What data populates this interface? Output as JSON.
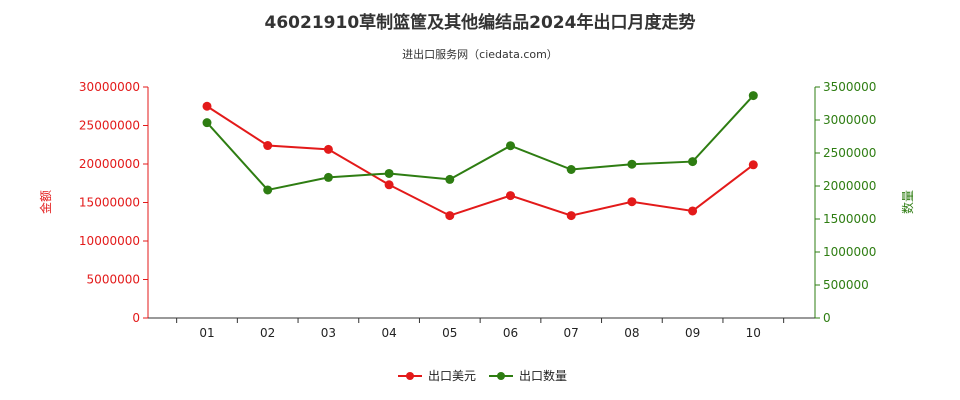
{
  "title": "46021910草制篮筐及其他编结品2024年出口月度走势",
  "subtitle": "进出口服务网（ciedata.com）",
  "chart_data": {
    "type": "line",
    "categories": [
      "01",
      "02",
      "03",
      "04",
      "05",
      "06",
      "07",
      "08",
      "09",
      "10"
    ],
    "y_left": {
      "label": "金额",
      "ylim": [
        0,
        30000000
      ],
      "ticks": [
        "0",
        "5000000",
        "10000000",
        "15000000",
        "20000000",
        "25000000",
        "30000000"
      ],
      "color": "#e31a1a"
    },
    "y_right": {
      "label": "数量",
      "ylim": [
        0,
        3500000
      ],
      "ticks": [
        "0",
        "500000",
        "1000000",
        "1500000",
        "2000000",
        "2500000",
        "3000000",
        "3500000"
      ],
      "color": "#2e7d12"
    },
    "series": [
      {
        "name": "出口美元",
        "axis": "left",
        "color": "#e31a1a",
        "values": [
          27500000,
          22400000,
          21900000,
          17300000,
          13300000,
          15900000,
          13300000,
          15100000,
          13900000,
          19900000
        ]
      },
      {
        "name": "出口数量",
        "axis": "right",
        "color": "#2e7d12",
        "values": [
          2960000,
          1940000,
          2130000,
          2190000,
          2100000,
          2610000,
          2250000,
          2330000,
          2370000,
          3370000
        ]
      }
    ],
    "grid": false,
    "legend_position": "bottom-center"
  }
}
